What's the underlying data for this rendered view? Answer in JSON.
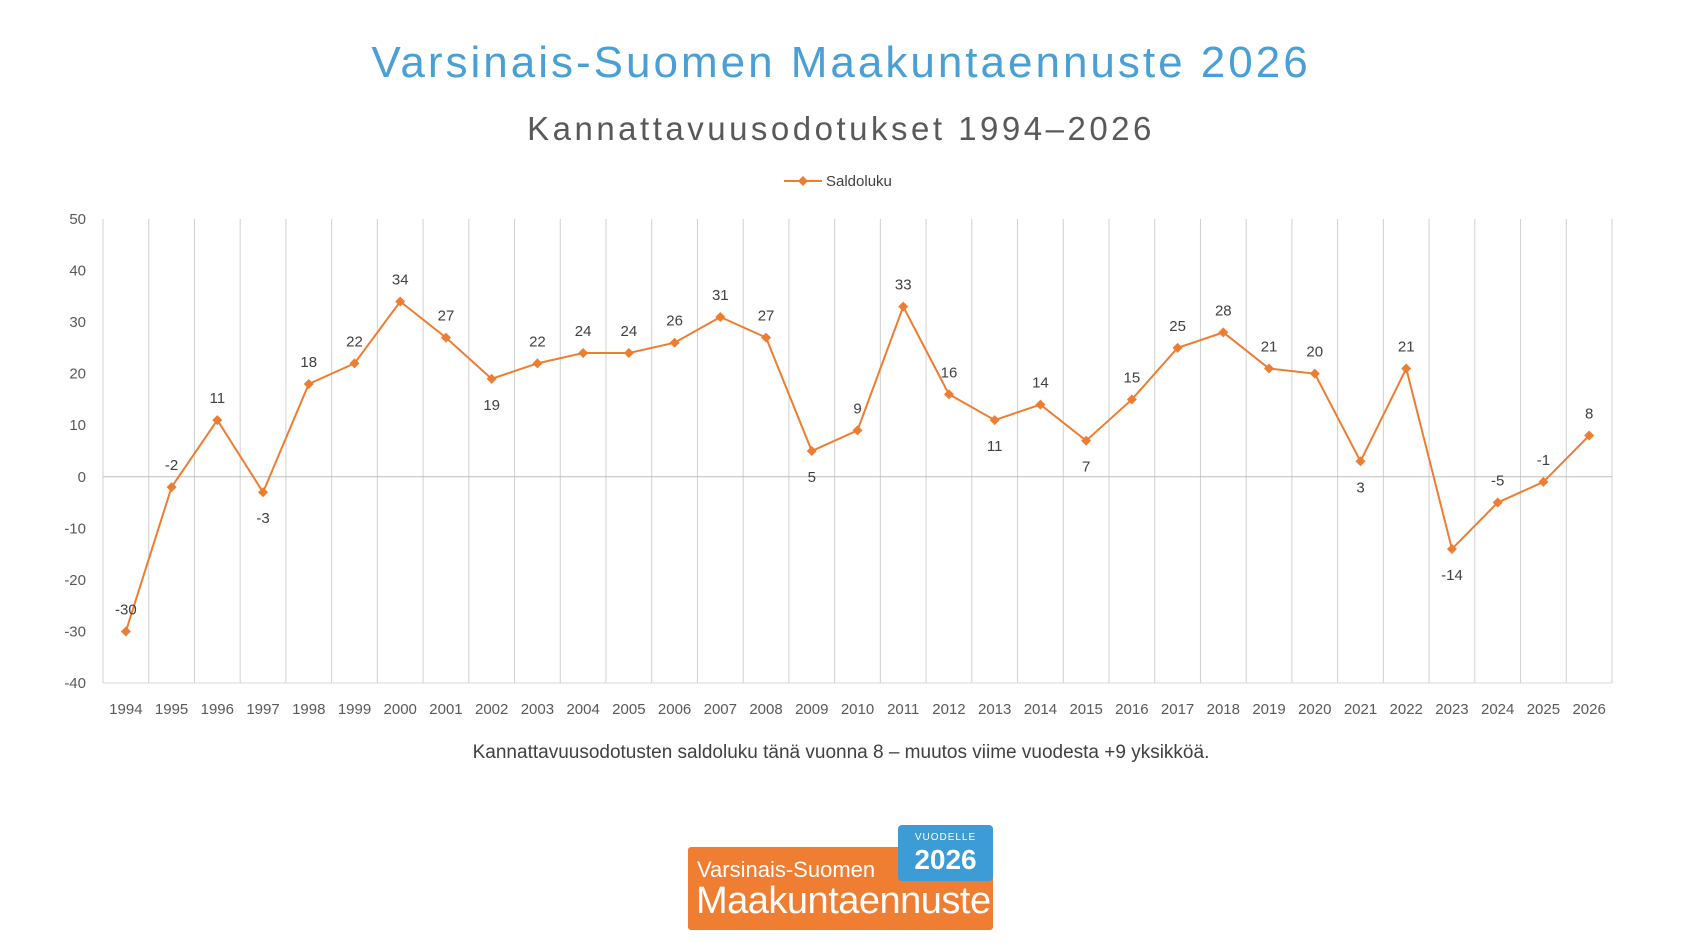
{
  "header": {
    "title": "Varsinais-Suomen Maakuntaennuste 2026",
    "subtitle": "Kannattavuusodotukset 1994–2026"
  },
  "caption": "Kannattavuusodotusten saldoluku tänä vuonna 8 – muutos viime vuodesta +9 yksikköä.",
  "logo": {
    "line1": "Varsinais-Suomen",
    "line2": "Maakuntaennuste",
    "badge_small": "VUODELLE",
    "badge_year": "2026"
  },
  "colors": {
    "series": "#ed7d31",
    "title": "#4a9fd4",
    "grid": "#d0d0d0",
    "logo_orange": "#ef7d32",
    "logo_blue": "#3d9bd5"
  },
  "chart_data": {
    "type": "line",
    "x": [
      "1994",
      "1995",
      "1996",
      "1997",
      "1998",
      "1999",
      "2000",
      "2001",
      "2002",
      "2003",
      "2004",
      "2005",
      "2006",
      "2007",
      "2008",
      "2009",
      "2010",
      "2011",
      "2012",
      "2013",
      "2014",
      "2015",
      "2016",
      "2017",
      "2018",
      "2019",
      "2020",
      "2021",
      "2022",
      "2023",
      "2024",
      "2025",
      "2026"
    ],
    "series": [
      {
        "name": "Saldoluku",
        "values": [
          -30,
          -2,
          11,
          -3,
          18,
          22,
          34,
          27,
          19,
          22,
          24,
          24,
          26,
          31,
          27,
          5,
          9,
          33,
          16,
          11,
          14,
          7,
          15,
          25,
          28,
          21,
          20,
          3,
          21,
          -14,
          -5,
          -1,
          8
        ]
      }
    ],
    "yticks": [
      "50",
      "40",
      "30",
      "20",
      "10",
      "0",
      "-10",
      "-20",
      "-30",
      "-40"
    ],
    "ylim": [
      -40,
      50
    ],
    "grid": "vertical",
    "legend": "top-center",
    "marker": "diamond"
  }
}
